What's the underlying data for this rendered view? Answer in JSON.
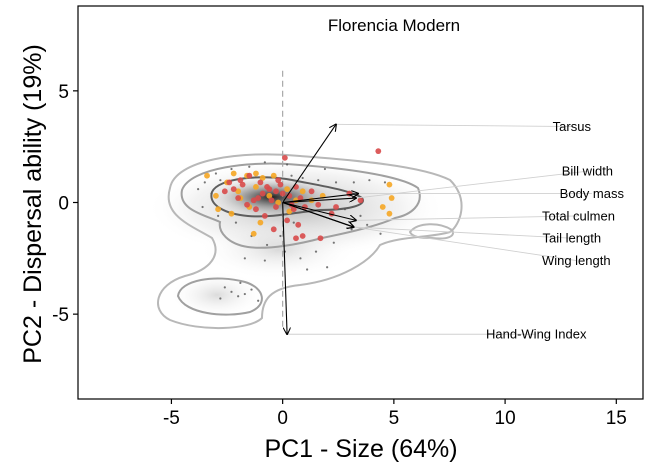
{
  "chart_data": {
    "type": "scatter",
    "title": "Florencia Modern",
    "xlabel": "PC1 - Size (64%)",
    "ylabel": "PC2 - Dispersal ability (19%)",
    "xlim": [
      -9.2,
      16.2
    ],
    "ylim": [
      -8.8,
      8.8
    ],
    "xticks": [
      -5,
      0,
      5,
      10,
      15
    ],
    "yticks": [
      -5,
      0,
      5
    ],
    "grid": false,
    "colors": {
      "modern_points": "#d84a4a",
      "fossil_points": "#f5a623",
      "background_points": "#555555",
      "arrows": "#000000",
      "contour_outer": "#b8b8b8",
      "contour_inner": "#666666"
    },
    "loadings": [
      {
        "name": "Tarsus",
        "x": 2.4,
        "y": 3.5,
        "label_x": 13.0,
        "label_y": 3.4
      },
      {
        "name": "Bill width",
        "x": 3.3,
        "y": 0.2,
        "label_x": 13.7,
        "label_y": 1.4
      },
      {
        "name": "Body mass",
        "x": 3.4,
        "y": 0.4,
        "label_x": 13.9,
        "label_y": 0.4
      },
      {
        "name": "Total culmen",
        "x": 3.3,
        "y": -0.8,
        "label_x": 13.3,
        "label_y": -0.6
      },
      {
        "name": "Tail length",
        "x": 3.2,
        "y": -1.1,
        "label_x": 13.0,
        "label_y": -1.6
      },
      {
        "name": "Wing length",
        "x": 3.2,
        "y": -1.1,
        "label_x": 13.2,
        "label_y": -2.6
      },
      {
        "name": "Hand-Wing Index",
        "x": 0.2,
        "y": -5.9,
        "label_x": 11.4,
        "label_y": -5.9
      }
    ],
    "series": [
      {
        "role": "modern",
        "points": [
          [
            4.3,
            2.3
          ],
          [
            0.1,
            2.0
          ],
          [
            -1.5,
            1.2
          ],
          [
            -1.0,
            0.9
          ],
          [
            -0.6,
            0.6
          ],
          [
            -0.2,
            1.0
          ],
          [
            0.3,
            0.3
          ],
          [
            -0.9,
            0.4
          ],
          [
            -1.8,
            0.8
          ],
          [
            -2.2,
            0.6
          ],
          [
            -0.7,
            0.7
          ],
          [
            0.0,
            0.4
          ],
          [
            0.6,
            0.7
          ],
          [
            0.8,
            0.2
          ],
          [
            -0.5,
            0.1
          ],
          [
            -1.3,
            0.1
          ],
          [
            -2.0,
            0.2
          ],
          [
            -1.6,
            -0.1
          ],
          [
            -0.3,
            -0.2
          ],
          [
            0.5,
            -0.3
          ],
          [
            1.0,
            -0.2
          ],
          [
            1.6,
            -0.1
          ],
          [
            2.2,
            -0.5
          ],
          [
            -0.8,
            -0.6
          ],
          [
            -2.6,
            0.5
          ],
          [
            -1.2,
            -0.3
          ],
          [
            0.2,
            -0.8
          ],
          [
            0.6,
            -1.6
          ],
          [
            0.9,
            -1.5
          ],
          [
            1.7,
            -1.6
          ],
          [
            -0.4,
            -1.2
          ],
          [
            2.4,
            -0.2
          ],
          [
            3.0,
            0.4
          ],
          [
            -1.9,
            1.0
          ],
          [
            -0.1,
            0.8
          ],
          [
            1.3,
            0.5
          ],
          [
            0.4,
            -0.1
          ],
          [
            -2.4,
            0.9
          ],
          [
            -1.1,
            0.2
          ],
          [
            -0.3,
            0.5
          ],
          [
            3.5,
            0.1
          ],
          [
            0.7,
            -1.0
          ]
        ]
      },
      {
        "role": "fossil",
        "points": [
          [
            -3.4,
            1.2
          ],
          [
            -2.5,
            0.9
          ],
          [
            -2.0,
            0.5
          ],
          [
            -1.6,
            1.2
          ],
          [
            -1.2,
            0.7
          ],
          [
            -0.9,
            1.1
          ],
          [
            -0.4,
            1.2
          ],
          [
            0.2,
            0.6
          ],
          [
            0.6,
            0.1
          ],
          [
            1.3,
            0.1
          ],
          [
            -2.9,
            -0.3
          ],
          [
            -1.5,
            -0.2
          ],
          [
            -1.0,
            -0.9
          ],
          [
            -1.3,
            -1.4
          ],
          [
            -1.9,
            0.2
          ],
          [
            -0.6,
            0.3
          ],
          [
            0.3,
            -0.4
          ],
          [
            1.8,
            0.3
          ],
          [
            4.8,
            0.8
          ],
          [
            4.8,
            -0.5
          ],
          [
            4.5,
            -0.2
          ],
          [
            4.9,
            0.2
          ],
          [
            -3.0,
            0.3
          ],
          [
            -2.2,
            1.3
          ],
          [
            0.9,
            0.5
          ],
          [
            -0.2,
            0.0
          ],
          [
            -2.3,
            -0.5
          ],
          [
            -1.2,
            1.3
          ]
        ]
      },
      {
        "role": "background",
        "points": [
          [
            -3.8,
            0.6
          ],
          [
            -3.5,
            0.9
          ],
          [
            -3.2,
            0.4
          ],
          [
            -2.8,
            1.0
          ],
          [
            -2.3,
            1.5
          ],
          [
            -1.5,
            1.6
          ],
          [
            -0.8,
            1.8
          ],
          [
            0.2,
            1.7
          ],
          [
            0.9,
            1.1
          ],
          [
            1.6,
            1.0
          ],
          [
            2.4,
            0.9
          ],
          [
            3.2,
            0.9
          ],
          [
            3.9,
            1.0
          ],
          [
            4.6,
            0.9
          ],
          [
            -3.6,
            -0.2
          ],
          [
            -2.9,
            -0.6
          ],
          [
            -2.1,
            -0.9
          ],
          [
            -1.4,
            -1.5
          ],
          [
            -0.7,
            -1.9
          ],
          [
            0.1,
            -2.2
          ],
          [
            0.8,
            -2.5
          ],
          [
            1.5,
            -2.2
          ],
          [
            2.3,
            -1.8
          ],
          [
            3.1,
            -1.2
          ],
          [
            3.8,
            -1.0
          ],
          [
            4.4,
            -1.4
          ],
          [
            -2.6,
            -3.8
          ],
          [
            -2.3,
            -4.0
          ],
          [
            -2.0,
            -4.2
          ],
          [
            -1.7,
            -4.1
          ],
          [
            -1.4,
            -3.9
          ],
          [
            -2.8,
            -4.3
          ],
          [
            -1.9,
            -3.6
          ],
          [
            -1.1,
            -4.4
          ],
          [
            -0.8,
            -2.6
          ],
          [
            1.1,
            -3.0
          ],
          [
            0.5,
            -0.9
          ],
          [
            -0.1,
            -1.5
          ],
          [
            2.8,
            -0.3
          ],
          [
            3.5,
            -0.6
          ],
          [
            -3.0,
            1.3
          ],
          [
            1.9,
            1.5
          ],
          [
            0.4,
            1.2
          ],
          [
            -1.7,
            -2.5
          ],
          [
            2.0,
            -2.9
          ]
        ]
      }
    ]
  }
}
